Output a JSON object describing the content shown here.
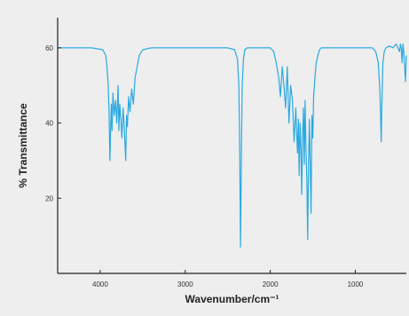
{
  "chart_data": {
    "type": "line",
    "title": "",
    "xlabel": "Wavenumber/cm⁻¹",
    "ylabel": "% Transmittance",
    "x_reversed": true,
    "xlim": [
      4500,
      400
    ],
    "ylim": [
      0,
      68
    ],
    "x_ticks": [
      {
        "value": 4000,
        "label": "4000"
      },
      {
        "value": 3000,
        "label": "3000"
      },
      {
        "value": 2000,
        "label": "2000"
      },
      {
        "value": 1000,
        "label": "1000"
      }
    ],
    "y_ticks": [
      {
        "value": 60,
        "label": "60"
      },
      {
        "value": 40,
        "label": "40"
      },
      {
        "value": 20,
        "label": "20"
      }
    ],
    "grid": false,
    "line_color": "#29a9e1",
    "background_color": "#eeeeee",
    "series": [
      {
        "x": [
          4500,
          4100,
          3970,
          3935,
          3920,
          3905,
          3895,
          3885,
          3870,
          3860,
          3850,
          3835,
          3820,
          3805,
          3790,
          3780,
          3770,
          3760,
          3745,
          3730,
          3715,
          3700,
          3690,
          3680,
          3665,
          3650,
          3630,
          3610,
          3590,
          3565,
          3540,
          3500,
          3400,
          3000,
          2500,
          2420,
          2385,
          2370,
          2360,
          2350,
          2340,
          2330,
          2315,
          2300,
          2270,
          2200,
          2000,
          1960,
          1930,
          1900,
          1880,
          1860,
          1840,
          1820,
          1800,
          1780,
          1760,
          1740,
          1720,
          1700,
          1690,
          1680,
          1670,
          1660,
          1650,
          1640,
          1630,
          1620,
          1610,
          1600,
          1590,
          1580,
          1570,
          1560,
          1550,
          1540,
          1530,
          1520,
          1510,
          1500,
          1490,
          1475,
          1460,
          1440,
          1420,
          1400,
          1370,
          1340,
          1300,
          1200,
          1100,
          1000,
          900,
          800,
          760,
          730,
          710,
          695,
          685,
          675,
          660,
          640,
          600,
          560,
          520,
          500,
          480,
          470,
          460,
          450,
          440,
          430,
          420,
          410,
          400
        ],
        "y": [
          60,
          60,
          59.5,
          58,
          55,
          50,
          42,
          30,
          45,
          38,
          48,
          42,
          46,
          40,
          50,
          38,
          45,
          42,
          36,
          44,
          38,
          30,
          42,
          39,
          47,
          43,
          49,
          45,
          52,
          55,
          58,
          59.5,
          60,
          60,
          60,
          59.5,
          57,
          50,
          35,
          7,
          30,
          50,
          57,
          59.5,
          60,
          60,
          60,
          59,
          56,
          52,
          47,
          55,
          50,
          44,
          55,
          40,
          50,
          46,
          35,
          44,
          38,
          32,
          41,
          26,
          40,
          34,
          21,
          37,
          44,
          29,
          46,
          33,
          24,
          9,
          30,
          41,
          28,
          16,
          42,
          36,
          47,
          52,
          56,
          58,
          59.5,
          60,
          60,
          60,
          60,
          60,
          60,
          60,
          60,
          60,
          59,
          56,
          48,
          35,
          48,
          56,
          59,
          60,
          60.5,
          60,
          61,
          60,
          59,
          61,
          60,
          56,
          61,
          59,
          55,
          51,
          58
        ]
      }
    ]
  }
}
